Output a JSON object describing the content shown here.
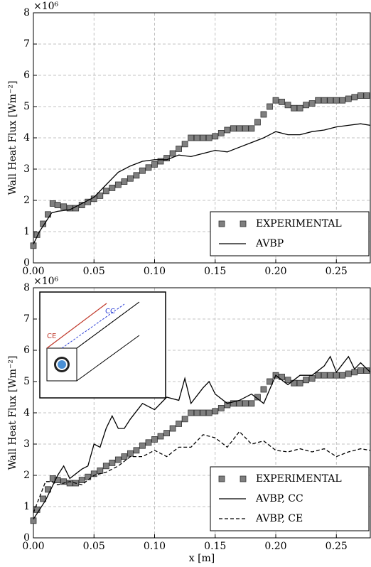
{
  "chart_data": [
    {
      "type": "line",
      "ylabel": "Wall Heat Flux [Wm⁻²]",
      "y_offset_label": "×10⁶",
      "xlim": [
        0,
        0.278
      ],
      "ylim": [
        0,
        8
      ],
      "xticks": [
        {
          "value": 0,
          "label": "0.00"
        },
        {
          "value": 0.05,
          "label": "0.05"
        },
        {
          "value": 0.1,
          "label": "0.10"
        },
        {
          "value": 0.15,
          "label": "0.15"
        },
        {
          "value": 0.2,
          "label": "0.20"
        },
        {
          "value": 0.25,
          "label": "0.25"
        }
      ],
      "yticks": [
        0,
        1,
        2,
        3,
        4,
        5,
        6,
        7,
        8
      ],
      "grid": true,
      "legend": "lower right",
      "series": [
        {
          "name": "EXPERIMENTAL",
          "style": "markers",
          "color": "#7f7f7f",
          "x": [
            0,
            0.003,
            0.008,
            0.012,
            0.016,
            0.02,
            0.025,
            0.03,
            0.035,
            0.04,
            0.045,
            0.05,
            0.055,
            0.06,
            0.065,
            0.07,
            0.075,
            0.08,
            0.085,
            0.09,
            0.095,
            0.1,
            0.105,
            0.11,
            0.115,
            0.12,
            0.125,
            0.13,
            0.135,
            0.14,
            0.145,
            0.15,
            0.155,
            0.16,
            0.165,
            0.17,
            0.175,
            0.18,
            0.185,
            0.19,
            0.195,
            0.2,
            0.205,
            0.21,
            0.215,
            0.22,
            0.225,
            0.23,
            0.235,
            0.24,
            0.245,
            0.25,
            0.255,
            0.26,
            0.265,
            0.27,
            0.275
          ],
          "values": [
            0.55,
            0.9,
            1.25,
            1.55,
            1.9,
            1.85,
            1.8,
            1.75,
            1.75,
            1.85,
            1.95,
            2.05,
            2.15,
            2.3,
            2.4,
            2.5,
            2.6,
            2.7,
            2.8,
            2.95,
            3.05,
            3.15,
            3.25,
            3.35,
            3.5,
            3.65,
            3.8,
            4.0,
            4.0,
            4.0,
            4.0,
            4.05,
            4.15,
            4.25,
            4.3,
            4.3,
            4.3,
            4.3,
            4.5,
            4.75,
            5.0,
            5.2,
            5.15,
            5.05,
            4.95,
            4.95,
            5.05,
            5.1,
            5.2,
            5.2,
            5.2,
            5.2,
            5.2,
            5.25,
            5.3,
            5.35,
            5.35
          ]
        },
        {
          "name": "AVBP",
          "style": "solid",
          "color": "#000000",
          "x": [
            0,
            0.005,
            0.01,
            0.015,
            0.02,
            0.03,
            0.04,
            0.05,
            0.06,
            0.07,
            0.08,
            0.09,
            0.1,
            0.11,
            0.12,
            0.13,
            0.14,
            0.15,
            0.16,
            0.17,
            0.18,
            0.19,
            0.2,
            0.21,
            0.22,
            0.23,
            0.24,
            0.25,
            0.26,
            0.27,
            0.278
          ],
          "values": [
            0.6,
            1.0,
            1.3,
            1.6,
            1.65,
            1.7,
            1.9,
            2.1,
            2.5,
            2.9,
            3.1,
            3.25,
            3.3,
            3.3,
            3.45,
            3.4,
            3.5,
            3.6,
            3.55,
            3.7,
            3.85,
            4.0,
            4.2,
            4.1,
            4.1,
            4.2,
            4.25,
            4.35,
            4.4,
            4.45,
            4.4
          ]
        }
      ]
    },
    {
      "type": "line",
      "ylabel": "Wall Heat Flux [Wm⁻²]",
      "y_offset_label": "×10⁶",
      "xlabel": "x [m]",
      "inset_labels": [
        "CE",
        "CC"
      ],
      "xlim": [
        0,
        0.278
      ],
      "ylim": [
        0,
        8
      ],
      "xticks": [
        {
          "value": 0,
          "label": "0.00"
        },
        {
          "value": 0.05,
          "label": "0.05"
        },
        {
          "value": 0.1,
          "label": "0.10"
        },
        {
          "value": 0.15,
          "label": "0.15"
        },
        {
          "value": 0.2,
          "label": "0.20"
        },
        {
          "value": 0.25,
          "label": "0.25"
        }
      ],
      "yticks": [
        0,
        1,
        2,
        3,
        4,
        5,
        6,
        7,
        8
      ],
      "grid": true,
      "legend": "lower right",
      "series": [
        {
          "name": "EXPERIMENTAL",
          "style": "markers",
          "color": "#7f7f7f",
          "x": [
            0,
            0.003,
            0.008,
            0.012,
            0.016,
            0.02,
            0.025,
            0.03,
            0.035,
            0.04,
            0.045,
            0.05,
            0.055,
            0.06,
            0.065,
            0.07,
            0.075,
            0.08,
            0.085,
            0.09,
            0.095,
            0.1,
            0.105,
            0.11,
            0.115,
            0.12,
            0.125,
            0.13,
            0.135,
            0.14,
            0.145,
            0.15,
            0.155,
            0.16,
            0.165,
            0.17,
            0.175,
            0.18,
            0.185,
            0.19,
            0.195,
            0.2,
            0.205,
            0.21,
            0.215,
            0.22,
            0.225,
            0.23,
            0.235,
            0.24,
            0.245,
            0.25,
            0.255,
            0.26,
            0.265,
            0.27,
            0.275
          ],
          "values": [
            0.55,
            0.9,
            1.25,
            1.55,
            1.9,
            1.85,
            1.8,
            1.75,
            1.75,
            1.85,
            1.95,
            2.05,
            2.15,
            2.3,
            2.4,
            2.5,
            2.6,
            2.7,
            2.8,
            2.95,
            3.05,
            3.15,
            3.25,
            3.35,
            3.5,
            3.65,
            3.8,
            4.0,
            4.0,
            4.0,
            4.0,
            4.05,
            4.15,
            4.25,
            4.3,
            4.3,
            4.3,
            4.3,
            4.5,
            4.75,
            5.0,
            5.2,
            5.15,
            5.05,
            4.95,
            4.95,
            5.05,
            5.1,
            5.2,
            5.2,
            5.2,
            5.2,
            5.2,
            5.25,
            5.3,
            5.35,
            5.35
          ]
        },
        {
          "name": "AVBP, CC",
          "style": "solid",
          "color": "#000000",
          "x": [
            0,
            0.01,
            0.02,
            0.025,
            0.03,
            0.04,
            0.045,
            0.05,
            0.055,
            0.06,
            0.065,
            0.07,
            0.075,
            0.08,
            0.09,
            0.1,
            0.11,
            0.12,
            0.125,
            0.13,
            0.14,
            0.145,
            0.15,
            0.16,
            0.17,
            0.18,
            0.19,
            0.2,
            0.21,
            0.22,
            0.23,
            0.24,
            0.245,
            0.25,
            0.26,
            0.265,
            0.27,
            0.278
          ],
          "values": [
            0.6,
            1.2,
            2.0,
            2.3,
            1.9,
            2.2,
            2.3,
            3.0,
            2.9,
            3.5,
            3.9,
            3.5,
            3.5,
            3.8,
            4.3,
            4.1,
            4.5,
            4.4,
            5.1,
            4.3,
            4.8,
            5.0,
            4.6,
            4.3,
            4.4,
            4.6,
            4.3,
            5.2,
            4.9,
            5.2,
            5.2,
            5.5,
            5.8,
            5.3,
            5.8,
            5.4,
            5.6,
            5.3
          ]
        },
        {
          "name": "AVBP, CE",
          "style": "dashed",
          "color": "#000000",
          "x": [
            0,
            0.01,
            0.015,
            0.02,
            0.03,
            0.04,
            0.05,
            0.06,
            0.07,
            0.08,
            0.09,
            0.1,
            0.11,
            0.12,
            0.13,
            0.14,
            0.15,
            0.16,
            0.17,
            0.18,
            0.19,
            0.2,
            0.21,
            0.22,
            0.23,
            0.24,
            0.25,
            0.26,
            0.27,
            0.278
          ],
          "values": [
            0.8,
            1.8,
            1.8,
            1.7,
            1.8,
            1.7,
            2.0,
            2.1,
            2.3,
            2.6,
            2.6,
            2.8,
            2.6,
            2.9,
            2.9,
            3.3,
            3.2,
            2.9,
            3.4,
            3.0,
            3.1,
            2.8,
            2.75,
            2.85,
            2.75,
            2.85,
            2.6,
            2.75,
            2.85,
            2.8
          ]
        }
      ]
    }
  ]
}
